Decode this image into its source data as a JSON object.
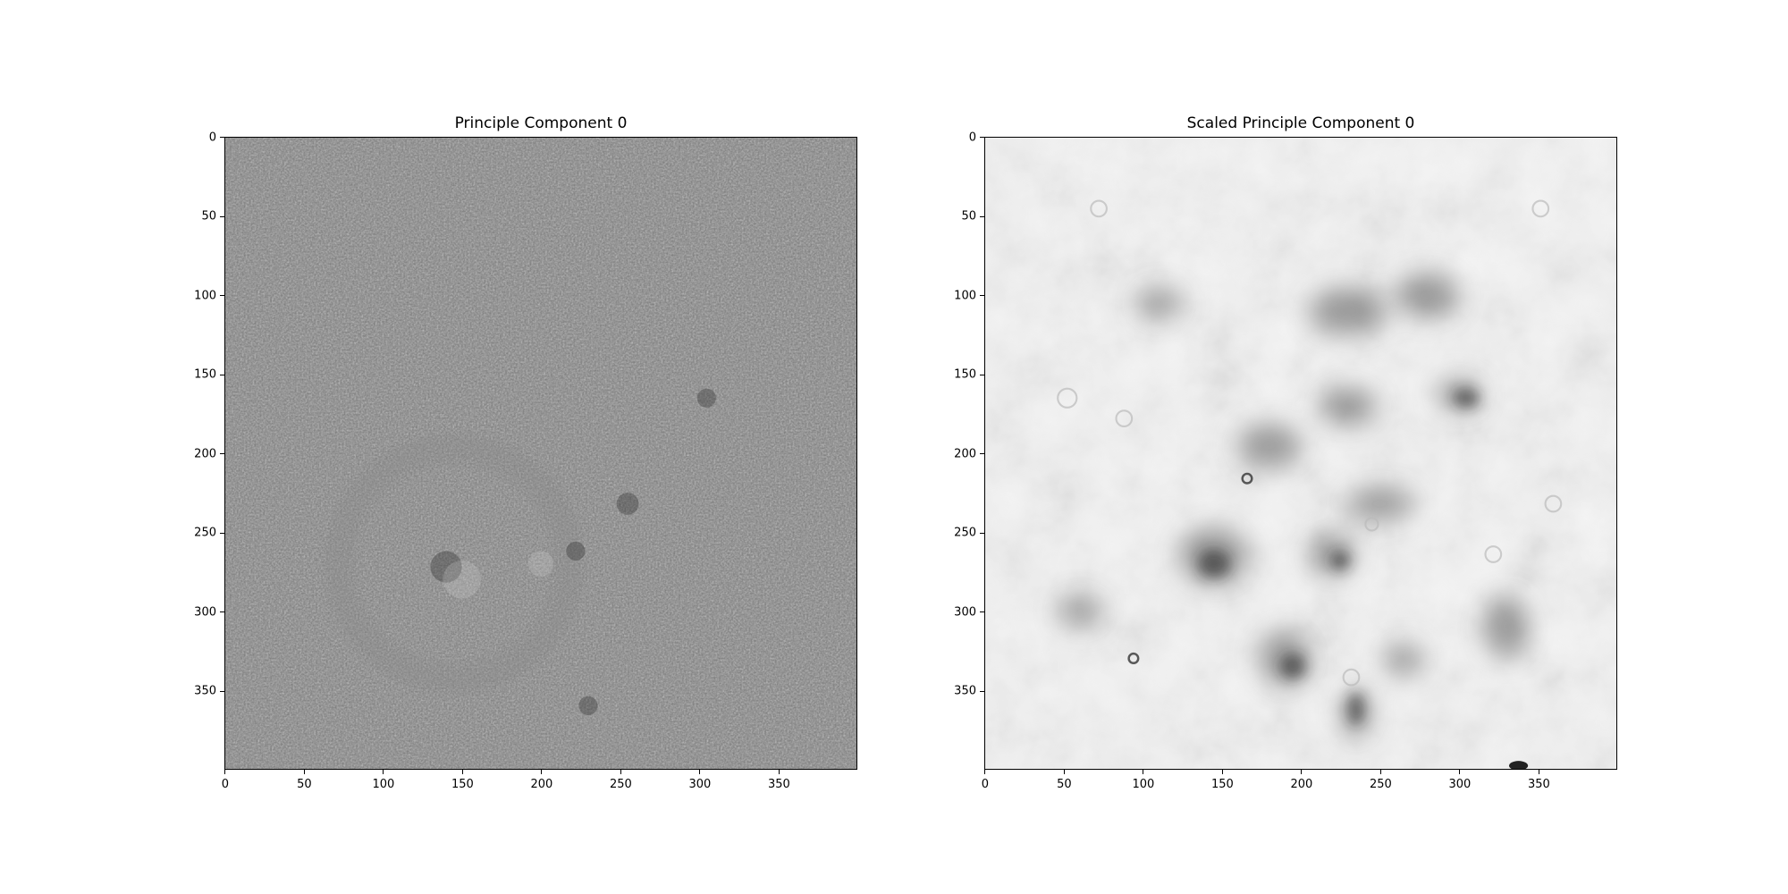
{
  "figure": {
    "panels": [
      {
        "title": "Principle Component 0",
        "colormap": "gray",
        "image_description_icon": "noise-texture-image",
        "y_ticks": [
          "0",
          "50",
          "100",
          "150",
          "200",
          "250",
          "300",
          "350"
        ],
        "x_ticks": [
          "0",
          "50",
          "100",
          "150",
          "200",
          "250",
          "300",
          "350"
        ]
      },
      {
        "title": "Scaled Principle Component 0",
        "colormap": "gray",
        "image_description_icon": "cloudy-texture-image",
        "y_ticks": [
          "0",
          "50",
          "100",
          "150",
          "200",
          "250",
          "300",
          "350"
        ],
        "x_ticks": [
          "0",
          "50",
          "100",
          "150",
          "200",
          "250",
          "300",
          "350"
        ]
      }
    ]
  },
  "colors": {
    "panel1_base": "#6e6e6e",
    "panel2_base": "#f2f2f2",
    "dark_blob": "#202020"
  }
}
